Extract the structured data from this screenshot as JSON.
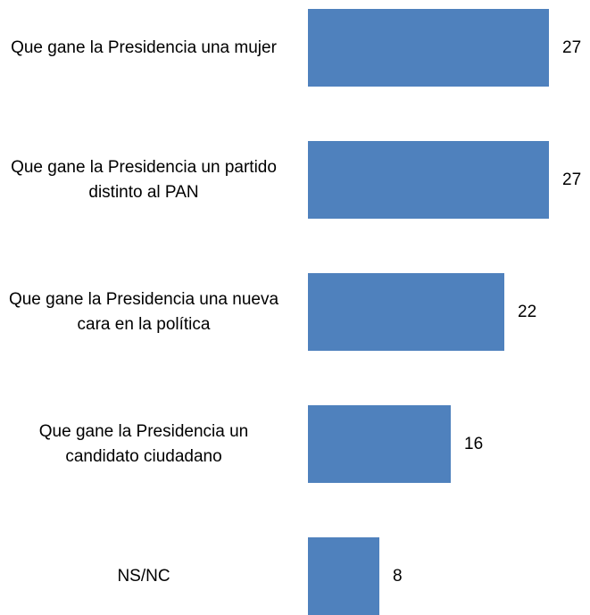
{
  "chart_data": {
    "type": "bar",
    "orientation": "horizontal",
    "categories": [
      "Que gane la Presidencia una mujer",
      "Que gane la Presidencia un partido distinto al PAN",
      "Que gane la Presidencia una nueva cara en la política",
      "Que gane la Presidencia un candidato ciudadano",
      "NS/NC"
    ],
    "values": [
      27,
      27,
      22,
      16,
      8
    ],
    "color": "#4f81bd"
  }
}
